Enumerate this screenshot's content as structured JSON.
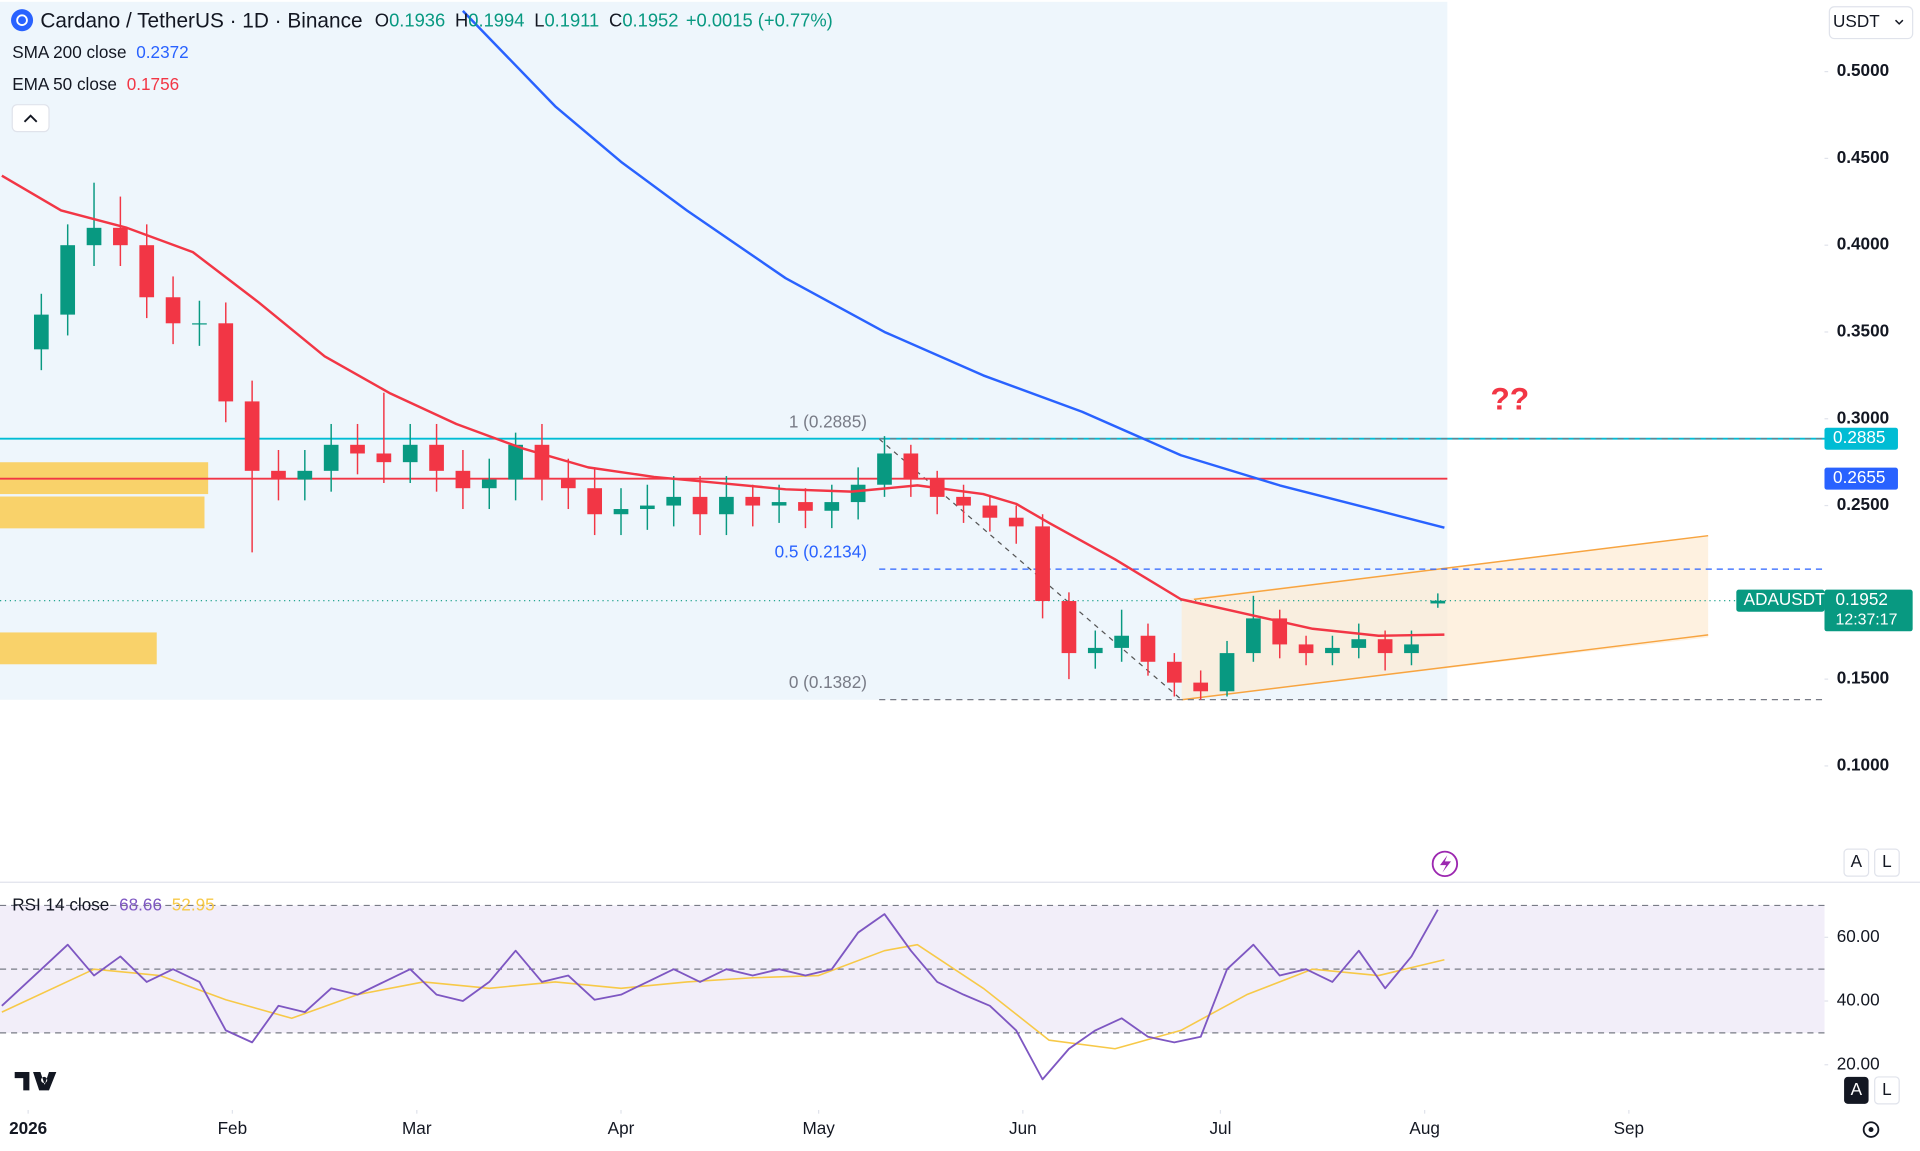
{
  "chart_data": {
    "type": "candlestick",
    "symbol": "Cardano / TetherUS · 1D · Binance",
    "ohlc_labels": [
      "O",
      "H",
      "L",
      "C"
    ],
    "ohlc_values": [
      0.1936,
      0.1994,
      0.1911,
      0.1952
    ],
    "change": "+0.0015 (+0.77%)",
    "currency": "USDT",
    "up_color": "#089981",
    "down_color": "#f23645",
    "candles": {
      "x": [
        2,
        6,
        10,
        14,
        18,
        22,
        26,
        30,
        34,
        38,
        42,
        46,
        50,
        54,
        58,
        62,
        66,
        70,
        74,
        78,
        82,
        86,
        90,
        94,
        98,
        102,
        106,
        110,
        114,
        118,
        122,
        126,
        130,
        134,
        138,
        142,
        146,
        150,
        154,
        158,
        162,
        166,
        170,
        174,
        178,
        182,
        186,
        190,
        194,
        198,
        202,
        206,
        210,
        214
      ],
      "open": [
        0.34,
        0.36,
        0.4,
        0.41,
        0.4,
        0.37,
        0.355,
        0.355,
        0.31,
        0.27,
        0.265,
        0.27,
        0.285,
        0.28,
        0.275,
        0.285,
        0.27,
        0.26,
        0.265,
        0.285,
        0.265,
        0.26,
        0.245,
        0.248,
        0.25,
        0.255,
        0.245,
        0.255,
        0.25,
        0.252,
        0.247,
        0.252,
        0.262,
        0.28,
        0.265,
        0.255,
        0.25,
        0.243,
        0.238,
        0.195,
        0.165,
        0.168,
        0.175,
        0.16,
        0.148,
        0.143,
        0.165,
        0.185,
        0.17,
        0.165,
        0.168,
        0.173,
        0.165,
        0.1936
      ],
      "high": [
        0.372,
        0.412,
        0.436,
        0.428,
        0.412,
        0.382,
        0.368,
        0.367,
        0.322,
        0.282,
        0.282,
        0.297,
        0.297,
        0.315,
        0.297,
        0.297,
        0.282,
        0.277,
        0.292,
        0.297,
        0.277,
        0.272,
        0.26,
        0.262,
        0.267,
        0.267,
        0.267,
        0.262,
        0.262,
        0.26,
        0.262,
        0.272,
        0.29,
        0.285,
        0.27,
        0.262,
        0.255,
        0.25,
        0.245,
        0.2,
        0.178,
        0.19,
        0.182,
        0.165,
        0.155,
        0.172,
        0.198,
        0.19,
        0.175,
        0.175,
        0.182,
        0.178,
        0.178,
        0.1994
      ],
      "low": [
        0.328,
        0.348,
        0.388,
        0.388,
        0.358,
        0.343,
        0.342,
        0.298,
        0.223,
        0.253,
        0.253,
        0.258,
        0.268,
        0.263,
        0.263,
        0.258,
        0.248,
        0.248,
        0.253,
        0.253,
        0.248,
        0.233,
        0.233,
        0.236,
        0.238,
        0.233,
        0.233,
        0.238,
        0.24,
        0.237,
        0.237,
        0.242,
        0.255,
        0.255,
        0.245,
        0.24,
        0.235,
        0.228,
        0.185,
        0.15,
        0.156,
        0.16,
        0.152,
        0.14,
        0.1382,
        0.14,
        0.16,
        0.162,
        0.158,
        0.158,
        0.162,
        0.155,
        0.158,
        0.1911
      ],
      "close": [
        0.36,
        0.4,
        0.41,
        0.4,
        0.37,
        0.355,
        0.355,
        0.31,
        0.27,
        0.265,
        0.27,
        0.285,
        0.28,
        0.275,
        0.285,
        0.27,
        0.26,
        0.265,
        0.285,
        0.265,
        0.26,
        0.245,
        0.248,
        0.25,
        0.255,
        0.245,
        0.255,
        0.25,
        0.252,
        0.247,
        0.252,
        0.262,
        0.28,
        0.265,
        0.255,
        0.25,
        0.243,
        0.238,
        0.195,
        0.165,
        0.168,
        0.175,
        0.16,
        0.148,
        0.143,
        0.165,
        0.185,
        0.17,
        0.165,
        0.168,
        0.173,
        0.165,
        0.17,
        0.1952
      ]
    },
    "series": [
      {
        "name": "SMA 200 close",
        "color": "#2962ff",
        "last": 0.2372,
        "x": [
          66,
          80,
          90,
          100,
          115,
          130,
          145,
          160,
          175,
          190,
          205,
          215
        ],
        "values": [
          0.535,
          0.48,
          0.448,
          0.42,
          0.381,
          0.35,
          0.325,
          0.304,
          0.279,
          0.2616,
          0.247,
          0.2372
        ]
      },
      {
        "name": "EMA 50 close",
        "color": "#f23645",
        "last": 0.1756,
        "x": [
          -4,
          5,
          15,
          25,
          35,
          45,
          55,
          65,
          75,
          85,
          95,
          105,
          115,
          125,
          135,
          145,
          150,
          155,
          165,
          175,
          185,
          195,
          205,
          215
        ],
        "values": [
          0.44,
          0.42,
          0.41,
          0.396,
          0.367,
          0.336,
          0.3145,
          0.297,
          0.283,
          0.272,
          0.2665,
          0.263,
          0.2594,
          0.258,
          0.2616,
          0.2566,
          0.251,
          0.24,
          0.219,
          0.196,
          0.1875,
          0.179,
          0.175,
          0.1756
        ]
      }
    ],
    "xlim": [
      -4.275,
      272.7
    ],
    "xticks": [
      {
        "value": 0,
        "label": "2026"
      },
      {
        "value": 31,
        "label": "Feb"
      },
      {
        "value": 59,
        "label": "Mar"
      },
      {
        "value": 90,
        "label": "Apr"
      },
      {
        "value": 120,
        "label": "May"
      },
      {
        "value": 151,
        "label": "Jun"
      },
      {
        "value": 181,
        "label": "Jul"
      },
      {
        "value": 212,
        "label": "Aug"
      },
      {
        "value": 243,
        "label": "Sep"
      }
    ],
    "ylim": [
      0.0337,
      0.5402
    ],
    "yticks": [
      {
        "value": 0.1,
        "label": "0.1000"
      },
      {
        "value": 0.15,
        "label": "0.1500"
      },
      {
        "value": 0.25,
        "label": "0.2500"
      },
      {
        "value": 0.3,
        "label": "0.3000"
      },
      {
        "value": 0.35,
        "label": "0.3500"
      },
      {
        "value": 0.4,
        "label": "0.4000"
      },
      {
        "value": 0.45,
        "label": "0.4500"
      },
      {
        "value": 0.5,
        "label": "0.5000"
      }
    ],
    "levels": [
      {
        "value": 0.2885,
        "color": "#00bcd4"
      },
      {
        "value": 0.2655,
        "color": "#f23645"
      }
    ],
    "fib": [
      {
        "value": 0.2885,
        "label": "1 (0.2885)",
        "color": "#787b86"
      },
      {
        "value": 0.2134,
        "label": "0.5 (0.2134)",
        "color": "#2962ff"
      },
      {
        "value": 0.1382,
        "label": "0 (0.1382)",
        "color": "#787b86"
      }
    ],
    "last_price": {
      "symbol": "ADAUSDT",
      "value": 0.1952,
      "countdown": "12:37:17"
    },
    "annotation": "??",
    "scale_buttons": [
      "A",
      "L"
    ],
    "rsi": {
      "name": "RSI 14 close",
      "color": "#7e57c2",
      "last": 68.66,
      "x": [
        -4,
        2,
        6,
        10,
        14,
        18,
        22,
        26,
        30,
        34,
        38,
        42,
        46,
        50,
        54,
        58,
        62,
        66,
        70,
        74,
        78,
        82,
        86,
        90,
        94,
        98,
        102,
        106,
        110,
        114,
        118,
        122,
        126,
        130,
        134,
        138,
        142,
        146,
        150,
        154,
        158,
        162,
        166,
        170,
        174,
        178,
        182,
        186,
        190,
        194,
        198,
        202,
        206,
        210,
        214
      ],
      "values": [
        38.5,
        50,
        57.7,
        48,
        54,
        46,
        50,
        46,
        30.8,
        27,
        38.5,
        36.5,
        44,
        42,
        46,
        50,
        42,
        40,
        46,
        55.8,
        46,
        48,
        40.4,
        42,
        46,
        50,
        46,
        50,
        48,
        50,
        48,
        50,
        61.5,
        67.3,
        55.8,
        46,
        42,
        38.5,
        30.8,
        15.4,
        25,
        30.8,
        34.6,
        28.8,
        27,
        28.8,
        50,
        57.7,
        48,
        50,
        46,
        55.8,
        44,
        54,
        68.66
      ],
      "ma": {
        "color": "#f7c948",
        "last": 52.95,
        "x": [
          -4,
          10,
          20,
          30,
          40,
          50,
          60,
          70,
          80,
          90,
          100,
          110,
          120,
          130,
          135,
          145,
          155,
          165,
          175,
          185,
          195,
          205,
          215
        ],
        "values": [
          36.5,
          50,
          48,
          40.4,
          34.6,
          42,
          46,
          44,
          46,
          44,
          46,
          47.3,
          48,
          55.8,
          57.7,
          44,
          27.7,
          25,
          30.8,
          42,
          50,
          48,
          52.95
        ]
      },
      "bands": [
        70,
        50,
        30
      ],
      "ylim": [
        5.8,
        76.9
      ],
      "yticks": [
        {
          "value": 20,
          "label": "20.00"
        },
        {
          "value": 40,
          "label": "40.00"
        },
        {
          "value": 60,
          "label": "60.00"
        }
      ]
    }
  }
}
